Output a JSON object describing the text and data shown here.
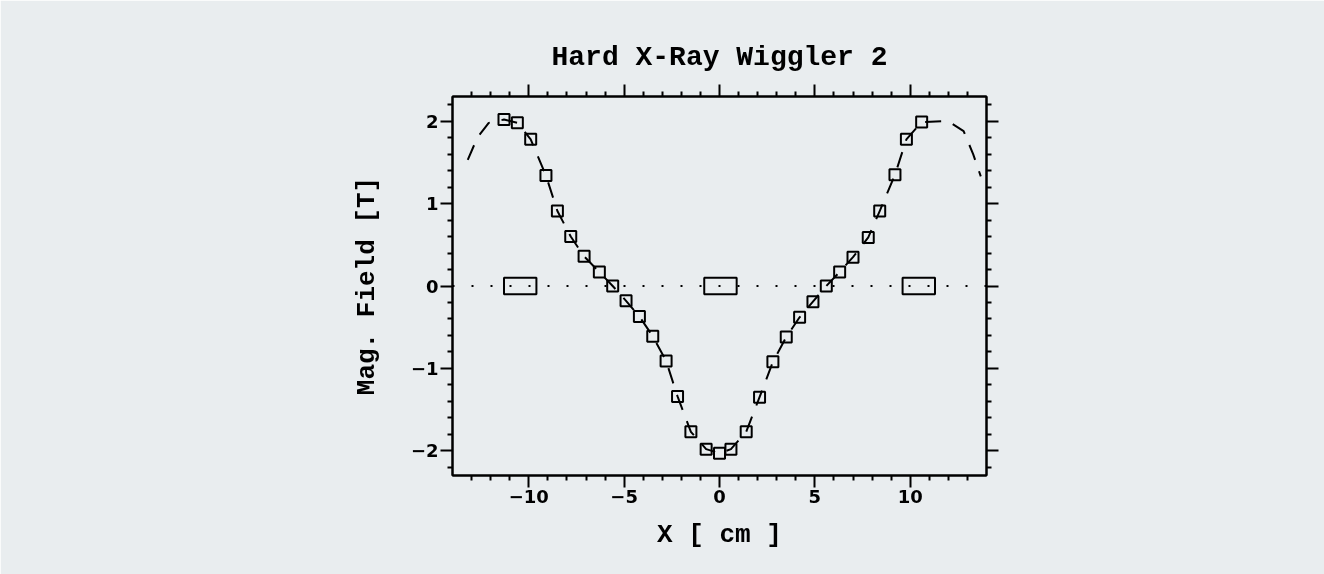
{
  "chart_data": {
    "type": "scatter",
    "title": "Hard X-Ray Wiggler 2",
    "xlabel": "X [ cm ]",
    "ylabel": "Mag. Field [T]",
    "xlim": [
      -14,
      14
    ],
    "ylim": [
      -2.3,
      2.3
    ],
    "xticks": [
      {
        "value": -13,
        "label": null
      },
      {
        "value": -12,
        "label": null
      },
      {
        "value": -11,
        "label": null
      },
      -10,
      {
        "value": -9,
        "label": null
      },
      {
        "value": -8,
        "label": null
      },
      {
        "value": -7,
        "label": null
      },
      {
        "value": -6,
        "label": null
      },
      -5,
      {
        "value": -4,
        "label": null
      },
      {
        "value": -3,
        "label": null
      },
      {
        "value": -2,
        "label": null
      },
      {
        "value": -1,
        "label": null
      },
      0,
      {
        "value": 1,
        "label": null
      },
      {
        "value": 2,
        "label": null
      },
      {
        "value": 3,
        "label": null
      },
      {
        "value": 4,
        "label": null
      },
      5,
      {
        "value": 6,
        "label": null
      },
      {
        "value": 7,
        "label": null
      },
      {
        "value": 8,
        "label": null
      },
      {
        "value": 9,
        "label": null
      },
      10,
      {
        "value": 11,
        "label": null
      },
      {
        "value": 12,
        "label": null
      },
      {
        "value": 13,
        "label": null
      }
    ],
    "yticks": [
      {
        "value": -2.2,
        "label": null
      },
      -2,
      {
        "value": -1.8,
        "label": null
      },
      {
        "value": -1.6,
        "label": null
      },
      {
        "value": -1.4,
        "label": null
      },
      {
        "value": -1.2,
        "label": null
      },
      -1,
      {
        "value": -0.8,
        "label": null
      },
      {
        "value": -0.6,
        "label": null
      },
      {
        "value": -0.4,
        "label": null
      },
      {
        "value": -0.2,
        "label": null
      },
      0,
      {
        "value": 0.2,
        "label": null
      },
      {
        "value": 0.4,
        "label": null
      },
      {
        "value": 0.6,
        "label": null
      },
      {
        "value": 0.8,
        "label": null
      },
      1,
      {
        "value": 1.2,
        "label": null
      },
      {
        "value": 1.4,
        "label": null
      },
      {
        "value": 1.6,
        "label": null
      },
      {
        "value": 1.8,
        "label": null
      },
      2,
      {
        "value": 2.2,
        "label": null
      }
    ],
    "ref_lines": [
      {
        "axis": "y",
        "value": 0,
        "color": "#000000",
        "line_style": "dotted"
      }
    ],
    "series": [
      {
        "type": "bar",
        "color": "#000000",
        "x": [
          -10.45,
          0.05,
          10.45
        ],
        "base": [
          -0.1,
          -0.1,
          -0.1
        ],
        "values": [
          0.2,
          0.2,
          0.2
        ]
      },
      {
        "type": "line",
        "color": "#000000",
        "line_style": "dashed",
        "x": [
          -13.2,
          -12.7,
          -12.1,
          -11.3,
          -10.6,
          -9.9,
          -9.1,
          -8.5,
          -7.8,
          -7.1,
          -6.3,
          -5.6,
          -4.9,
          -4.2,
          -3.5,
          -2.8,
          -2.2,
          -1.5,
          -0.7,
          0.0,
          0.6,
          1.4,
          2.1,
          2.8,
          3.5,
          4.2,
          4.9,
          5.6,
          6.3,
          7.0,
          7.8,
          8.4,
          9.2,
          9.8,
          10.6,
          11.7,
          12.2,
          12.8,
          13.3,
          13.7
        ],
        "values": [
          1.53,
          1.8,
          1.98,
          2.02,
          1.98,
          1.78,
          1.34,
          0.91,
          0.6,
          0.36,
          0.17,
          0.0,
          -0.18,
          -0.37,
          -0.61,
          -0.91,
          -1.34,
          -1.77,
          -1.98,
          -2.03,
          -1.98,
          -1.77,
          -1.35,
          -0.92,
          -0.62,
          -0.38,
          -0.19,
          0.0,
          0.17,
          0.35,
          0.59,
          0.91,
          1.35,
          1.78,
          1.99,
          2.0,
          1.97,
          1.88,
          1.6,
          1.33
        ]
      },
      {
        "color": "#000000",
        "marker": "square",
        "x": [
          -11.3,
          -10.6,
          -9.9,
          -9.1,
          -8.5,
          -7.8,
          -7.1,
          -6.3,
          -5.6,
          -4.9,
          -4.2,
          -3.5,
          -2.8,
          -2.2,
          -1.5,
          -0.7,
          0.0,
          0.6,
          1.4,
          2.1,
          2.8,
          3.5,
          4.2,
          4.9,
          5.6,
          6.3,
          7.0,
          7.8,
          8.4,
          9.2,
          9.8,
          10.6
        ],
        "values": [
          2.02,
          1.98,
          1.78,
          1.34,
          0.91,
          0.6,
          0.36,
          0.17,
          0.0,
          -0.18,
          -0.37,
          -0.61,
          -0.91,
          -1.34,
          -1.77,
          -1.98,
          -2.03,
          -1.98,
          -1.77,
          -1.35,
          -0.92,
          -0.62,
          -0.38,
          -0.19,
          0.0,
          0.17,
          0.35,
          0.59,
          0.91,
          1.35,
          1.78,
          1.99
        ]
      }
    ]
  }
}
